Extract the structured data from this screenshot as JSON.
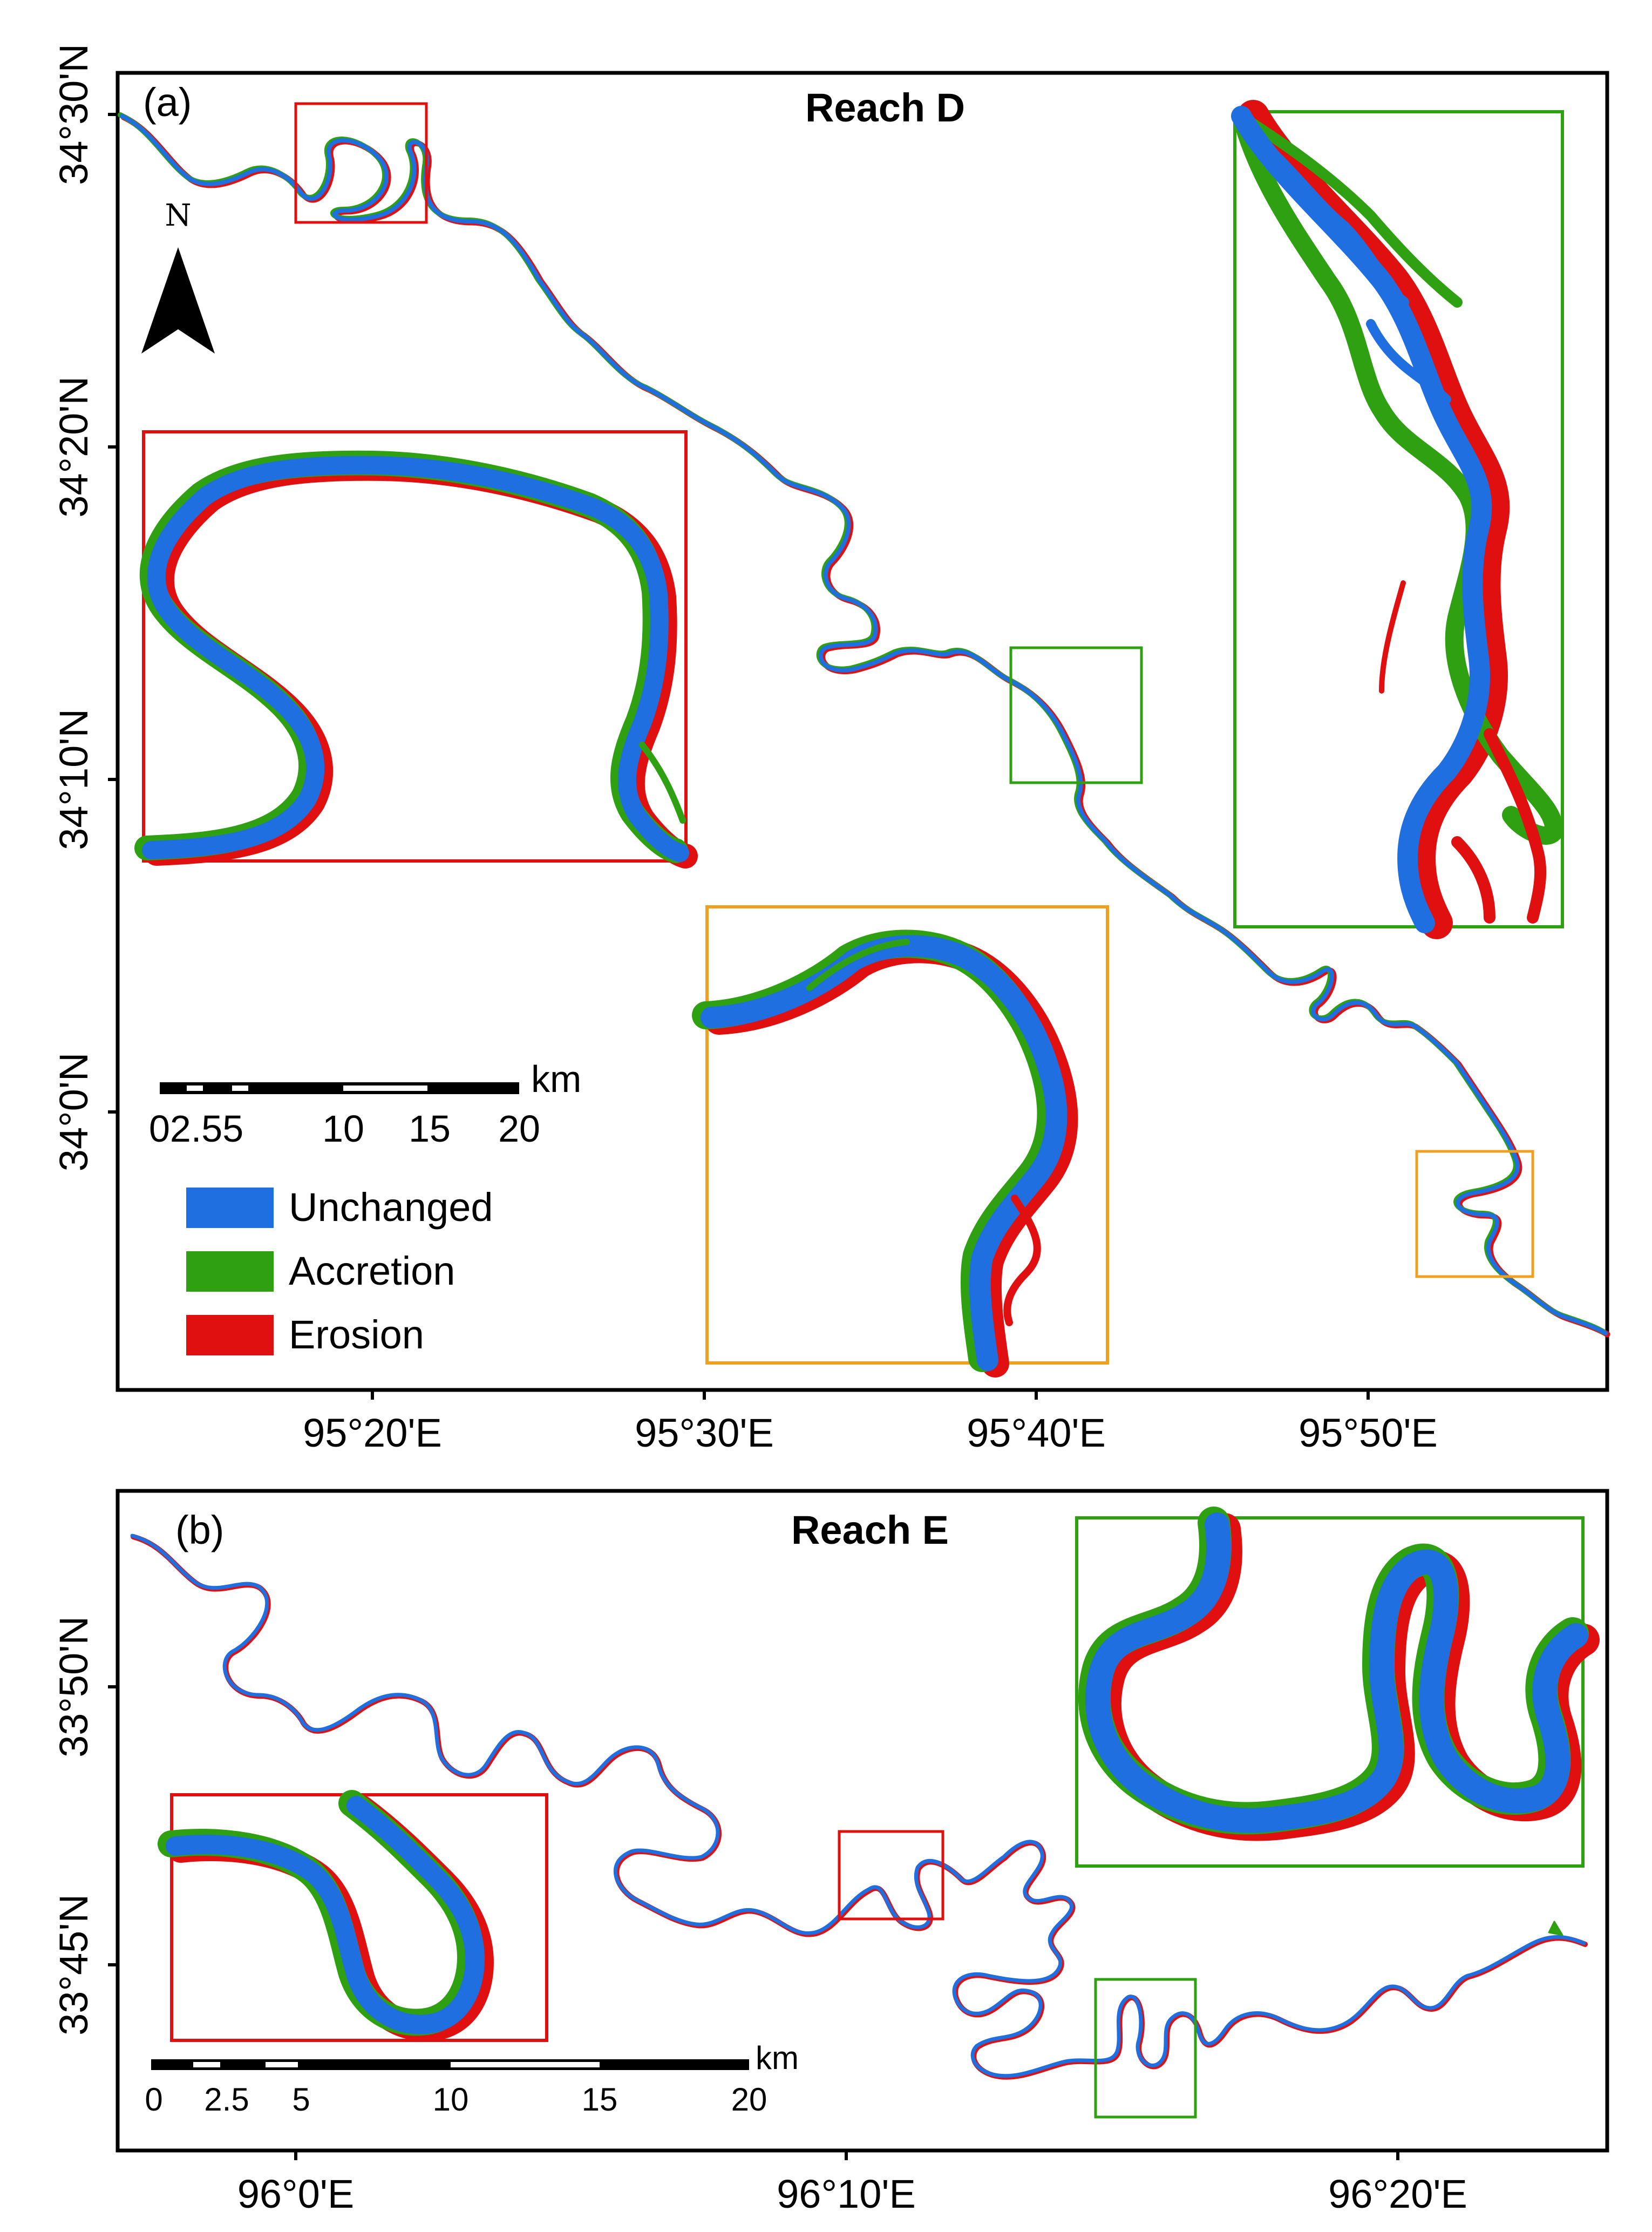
{
  "panels": [
    {
      "panel_label": "(a)",
      "title": "Reach D",
      "lat_ticks": [
        "34°30'N",
        "34°20'N",
        "34°10'N",
        "34°0'N"
      ],
      "lon_ticks": [
        "95°20'E",
        "95°30'E",
        "95°40'E",
        "95°50'E"
      ],
      "north_letter": "N",
      "scale_unit": "km",
      "scale_labels": [
        "0",
        "2.5",
        "5",
        "10",
        "15",
        "20"
      ],
      "scale_text": "02.55",
      "legend": [
        {
          "label": "Unchanged",
          "color": "#1f6fe0"
        },
        {
          "label": "Accretion",
          "color": "#2ea012"
        },
        {
          "label": "Erosion",
          "color": "#e01010"
        }
      ]
    },
    {
      "panel_label": "(b)",
      "title": "Reach E",
      "lat_ticks": [
        "33°50'N",
        "33°45'N"
      ],
      "lon_ticks": [
        "96°0'E",
        "96°10'E",
        "96°20'E"
      ],
      "scale_unit": "km",
      "scale_labels": [
        "0",
        "2.5",
        "5",
        "10",
        "15",
        "20"
      ]
    }
  ],
  "colors": {
    "unchanged": "#1f6fe0",
    "accretion": "#2ea012",
    "erosion": "#e01010",
    "inset_red": "#e01010",
    "inset_green": "#2ea012",
    "inset_orange": "#f0a020",
    "frame": "#000000"
  }
}
